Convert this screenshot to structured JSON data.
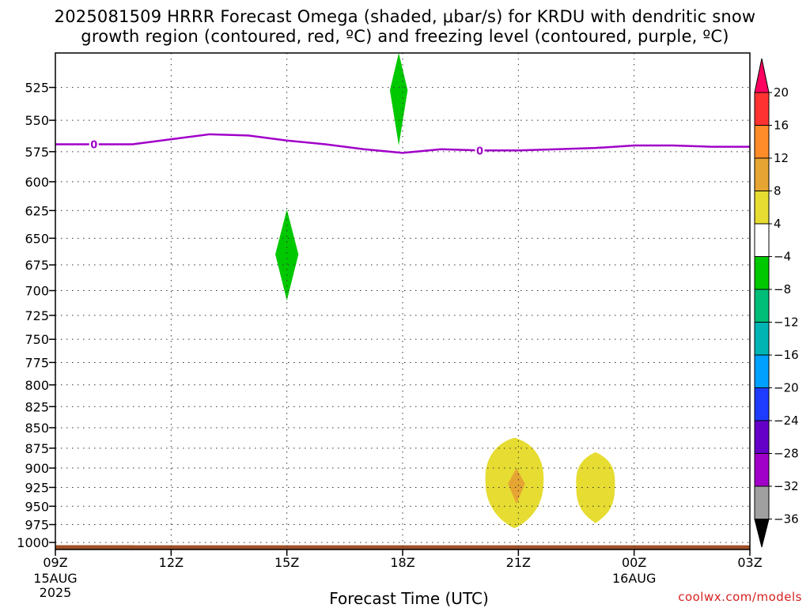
{
  "title_line1": "2025081509 HRRR Forecast Omega (shaded, μbar/s) for KRDU with dendritic snow",
  "title_line2": "growth region (contoured, red, ºC) and freezing level (contoured, purple, ºC)",
  "credit": "coolwx.com/models",
  "chart_data": {
    "type": "heatmap",
    "xlabel": "Forecast Time (UTC)",
    "x_ticks": [
      {
        "hour": 0,
        "label": "09Z",
        "sub1": "15AUG",
        "sub2": "2025"
      },
      {
        "hour": 3,
        "label": "12Z",
        "sub1": "",
        "sub2": ""
      },
      {
        "hour": 6,
        "label": "15Z",
        "sub1": "",
        "sub2": ""
      },
      {
        "hour": 9,
        "label": "18Z",
        "sub1": "",
        "sub2": ""
      },
      {
        "hour": 12,
        "label": "21Z",
        "sub1": "",
        "sub2": ""
      },
      {
        "hour": 15,
        "label": "00Z",
        "sub1": "16AUG",
        "sub2": ""
      },
      {
        "hour": 18,
        "label": "03Z",
        "sub1": "",
        "sub2": ""
      }
    ],
    "xlim": [
      0,
      18
    ],
    "y_ticks": [
      525,
      550,
      575,
      600,
      625,
      650,
      675,
      700,
      725,
      750,
      775,
      800,
      825,
      850,
      875,
      900,
      925,
      950,
      975,
      1000
    ],
    "ylim": [
      500,
      1010
    ],
    "y_reversed": true,
    "y_log": true,
    "grid": true,
    "freezing_level": {
      "color": "#a000c8",
      "label": "0",
      "label_hours": [
        1,
        11
      ],
      "points": [
        [
          0,
          569
        ],
        [
          1,
          569
        ],
        [
          2,
          569
        ],
        [
          3,
          565
        ],
        [
          4,
          561
        ],
        [
          5,
          562
        ],
        [
          6,
          566
        ],
        [
          7,
          569
        ],
        [
          8,
          573
        ],
        [
          9,
          576
        ],
        [
          10,
          573
        ],
        [
          11,
          574
        ],
        [
          12,
          574
        ],
        [
          13,
          573
        ],
        [
          14,
          572
        ],
        [
          15,
          570
        ],
        [
          16,
          570
        ],
        [
          17,
          571
        ],
        [
          18,
          571
        ]
      ]
    },
    "omega_features": [
      {
        "name": "",
        "value_range": [
          -8,
          -4
        ],
        "color": "#00c800",
        "center_hour": 8.9,
        "center_hpa": 527,
        "half_width_hours": 0.23,
        "top_hpa": 500,
        "bottom_hpa": 570
      },
      {
        "name": "",
        "value_range": [
          -8,
          -4
        ],
        "color": "#00c800",
        "center_hour": 6.0,
        "center_hpa": 665,
        "half_width_hours": 0.3,
        "top_hpa": 624,
        "bottom_hpa": 710
      },
      {
        "name": "",
        "value_range": [
          4,
          8
        ],
        "color": "#e6dc32",
        "center_hour": 11.9,
        "center_hpa": 920,
        "half_width_hours": 0.75,
        "top_hpa": 862,
        "bottom_hpa": 980
      },
      {
        "name": "",
        "value_range": [
          8,
          12
        ],
        "color": "#e6a533",
        "center_hour": 11.95,
        "center_hpa": 920,
        "half_width_hours": 0.22,
        "top_hpa": 900,
        "bottom_hpa": 947
      },
      {
        "name": "",
        "value_range": [
          4,
          8
        ],
        "color": "#e6dc32",
        "center_hour": 14.0,
        "center_hpa": 925,
        "half_width_hours": 0.5,
        "top_hpa": 880,
        "bottom_hpa": 973
      }
    ],
    "terrain": {
      "color": "#a05028",
      "hpa": 1004
    },
    "colorbar": {
      "labels": [
        "20",
        "16",
        "12",
        "8",
        "4",
        "-4",
        "-8",
        "-12",
        "-16",
        "-20",
        "-24",
        "-28",
        "-32",
        "-36"
      ],
      "colors": [
        "#ff0060",
        "#ff3232",
        "#ff8c28",
        "#e6a533",
        "#e6dc32",
        "#ffffff",
        "#00c800",
        "#00be78",
        "#00b4b4",
        "#00a0ff",
        "#1e3cff",
        "#6400c8",
        "#a000c8",
        "#a0a0a0",
        "#000000"
      ]
    }
  }
}
